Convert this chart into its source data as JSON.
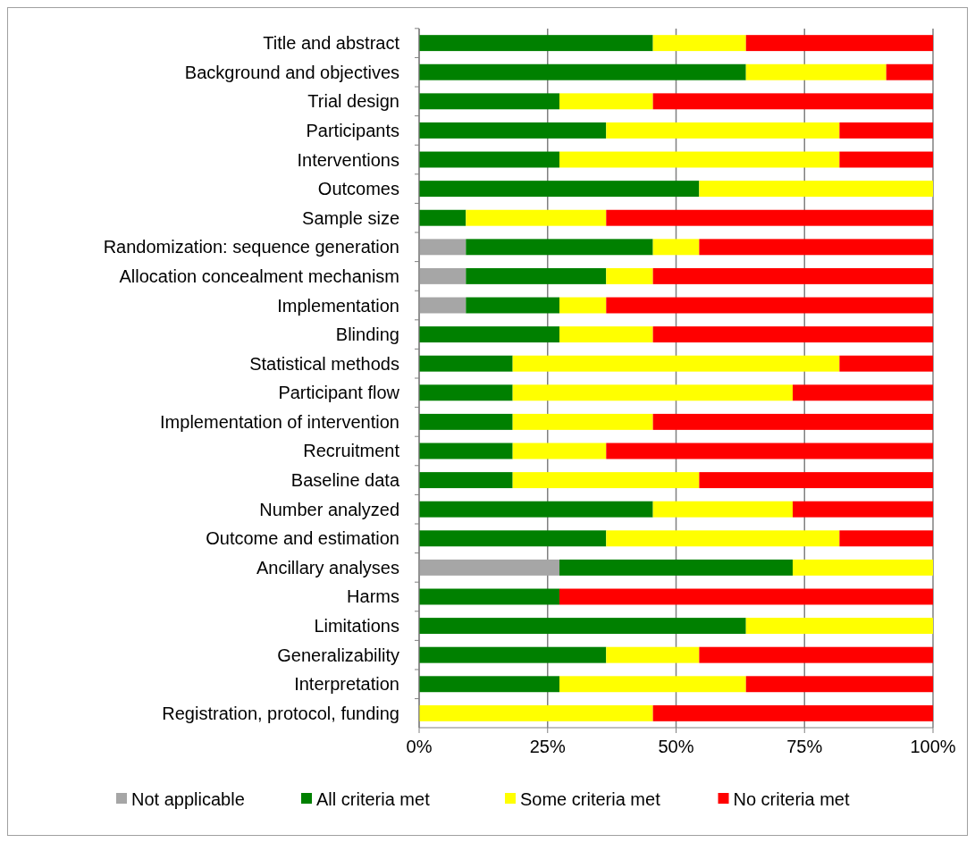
{
  "chart_data": {
    "type": "bar",
    "orientation": "horizontal",
    "stacked": true,
    "categories": [
      "Title and abstract",
      "Background and objectives",
      "Trial design",
      "Participants",
      "Interventions",
      "Outcomes",
      "Sample size",
      "Randomization: sequence generation",
      "Allocation concealment mechanism",
      "Implementation",
      "Blinding",
      "Statistical methods",
      "Participant flow",
      "Implementation of intervention",
      "Recruitment",
      "Baseline data",
      "Number analyzed",
      "Outcome and estimation",
      "Ancillary analyses",
      "Harms",
      "Limitations",
      "Generalizability",
      "Interpretation",
      "Registration, protocol, funding"
    ],
    "series": [
      {
        "name": "Not applicable",
        "color": "#a6a6a6",
        "values": [
          0,
          0,
          0,
          0,
          0,
          0,
          0,
          9.1,
          9.1,
          9.1,
          0,
          0,
          0,
          0,
          0,
          0,
          0,
          0,
          27.3,
          0,
          0,
          0,
          0,
          0
        ]
      },
      {
        "name": "All criteria met",
        "color": "#008000",
        "values": [
          45.5,
          63.6,
          27.3,
          36.4,
          27.3,
          54.5,
          9.1,
          36.4,
          27.3,
          18.2,
          27.3,
          18.2,
          18.2,
          18.2,
          18.2,
          18.2,
          45.5,
          36.4,
          45.4,
          27.3,
          63.6,
          36.4,
          27.3,
          0
        ]
      },
      {
        "name": "Some criteria met",
        "color": "#ffff00",
        "values": [
          18.1,
          27.3,
          18.2,
          45.4,
          54.5,
          45.5,
          27.3,
          9.0,
          9.1,
          9.1,
          18.2,
          63.6,
          54.5,
          27.3,
          18.2,
          36.3,
          27.2,
          45.4,
          27.3,
          0,
          36.4,
          18.1,
          36.3,
          45.5
        ]
      },
      {
        "name": "No criteria met",
        "color": "#ff0000",
        "values": [
          36.4,
          9.1,
          54.5,
          18.2,
          18.2,
          0,
          63.6,
          45.5,
          54.5,
          63.6,
          54.5,
          18.2,
          27.3,
          54.5,
          63.6,
          45.5,
          27.3,
          18.2,
          0,
          72.7,
          0,
          45.5,
          36.4,
          54.5
        ]
      }
    ],
    "xlim": [
      0,
      100
    ],
    "xticks": [
      {
        "value": 0,
        "label": "0%"
      },
      {
        "value": 25,
        "label": "25%"
      },
      {
        "value": 50,
        "label": "50%"
      },
      {
        "value": 75,
        "label": "75%"
      },
      {
        "value": 100,
        "label": "100%"
      }
    ],
    "grid": "x",
    "legend": "bottom"
  }
}
